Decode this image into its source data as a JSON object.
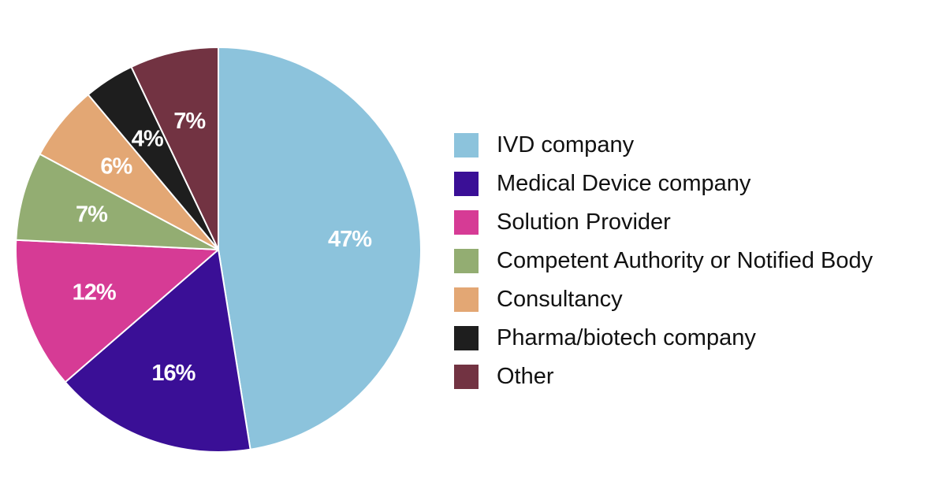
{
  "chart_data": {
    "type": "pie",
    "title": "",
    "categories": [
      "IVD company",
      "Medical Device company",
      "Solution Provider",
      "Competent Authority or Notified Body",
      "Consultancy",
      "Pharma/biotech company",
      "Other"
    ],
    "values": [
      47,
      16,
      12,
      7,
      6,
      4,
      7
    ],
    "value_labels": [
      "47%",
      "16%",
      "12%",
      "7%",
      "6%",
      "4%",
      "7%"
    ],
    "colors": [
      "#8cc3dc",
      "#3a0f96",
      "#d63b95",
      "#93ad72",
      "#e3a774",
      "#1e1e1e",
      "#723342"
    ],
    "start_angle": "12 o'clock",
    "direction": "clockwise",
    "legend_position": "right"
  }
}
